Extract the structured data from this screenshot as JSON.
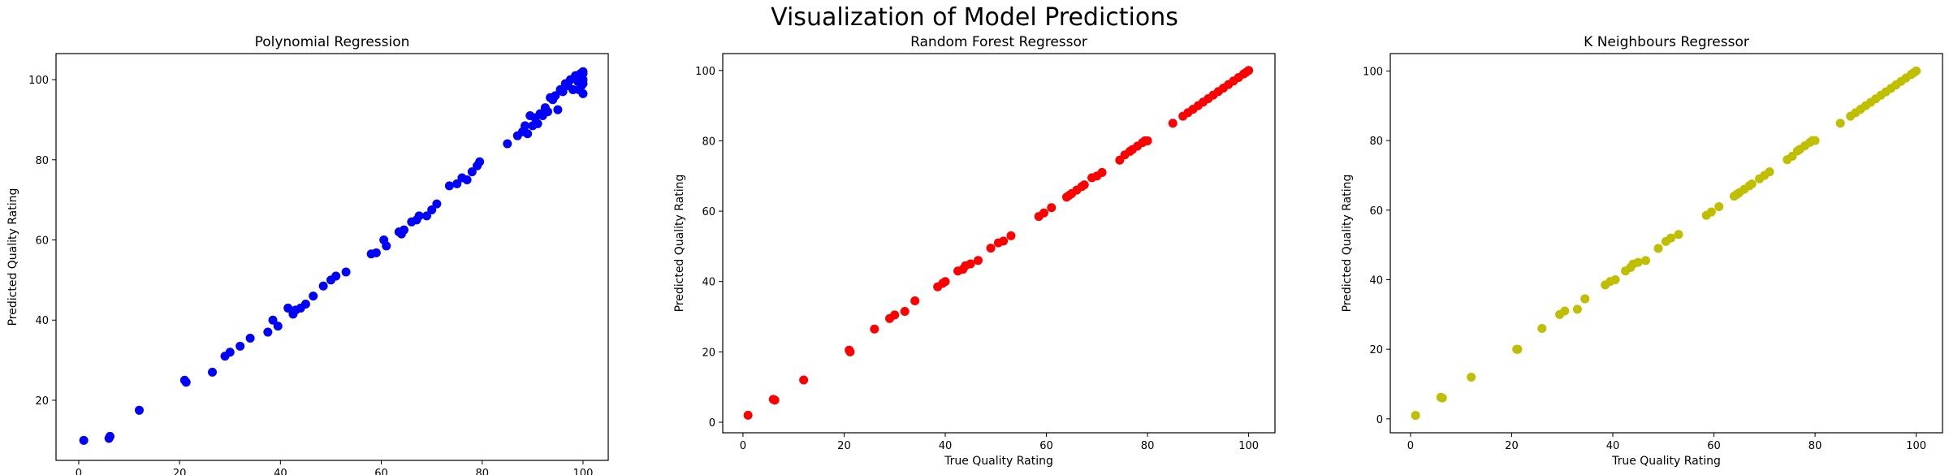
{
  "figure_title": "Visualization of Model Predictions",
  "chart_data": [
    {
      "type": "scatter",
      "title": "Polynomial Regression",
      "xlabel": "True Quality Rating",
      "ylabel": "Predicted Quality Rating",
      "color": "#0000ff",
      "xlim": [
        -4.5,
        105
      ],
      "ylim": [
        5,
        106.5
      ],
      "xticks": [
        0,
        20,
        40,
        60,
        80,
        100
      ],
      "yticks": [
        20,
        40,
        60,
        80,
        100
      ],
      "grid": false,
      "x": [
        1,
        6,
        6.2,
        12,
        21,
        21.3,
        26.5,
        29,
        30,
        32,
        34,
        37.5,
        38.5,
        39.5,
        41.5,
        42.5,
        43,
        44,
        45,
        46.5,
        48.5,
        50,
        51,
        53,
        58,
        59,
        60.5,
        61,
        63.5,
        64,
        64.5,
        66,
        67,
        67.5,
        69,
        70,
        71,
        73.5,
        75,
        76,
        77,
        78,
        79,
        79.5,
        85,
        87,
        88,
        88.5,
        89,
        89.5,
        90,
        90.5,
        91,
        91.5,
        92,
        92.5,
        93,
        93.5,
        94,
        94.5,
        95,
        95.5,
        96,
        96.5,
        97,
        97.5,
        98,
        98.5,
        99,
        99.2,
        99.5,
        99.7,
        100,
        100,
        100,
        100,
        100
      ],
      "y": [
        10,
        10.5,
        11,
        17.5,
        25,
        24.5,
        27,
        31,
        32,
        33.5,
        35.5,
        37,
        40,
        38.5,
        43,
        41.5,
        42.5,
        43,
        44,
        46,
        48.5,
        50,
        51,
        52,
        56.5,
        56.8,
        60,
        58.5,
        62,
        61.5,
        62.5,
        64.5,
        65,
        66,
        66,
        67.5,
        69,
        73.5,
        74,
        75.5,
        75,
        77,
        78.5,
        79.5,
        84,
        86,
        87,
        88.5,
        86.5,
        91,
        88.5,
        90.5,
        89,
        91.5,
        91,
        93,
        92,
        95.5,
        95,
        96,
        92.5,
        97.5,
        97,
        99,
        98.5,
        100,
        97.5,
        101,
        99.5,
        97.5,
        101.5,
        98.5,
        100,
        102,
        99,
        96.5,
        101.5
      ]
    },
    {
      "type": "scatter",
      "title": "Random Forest Regressor",
      "xlabel": "True Quality Rating",
      "ylabel": "Predicted Quality Rating",
      "color": "#ff0000",
      "xlim": [
        -4,
        105.2
      ],
      "ylim": [
        -3,
        104.8
      ],
      "xticks": [
        0,
        20,
        40,
        60,
        80,
        100
      ],
      "yticks": [
        0,
        20,
        40,
        60,
        80,
        100
      ],
      "grid": false,
      "x": [
        1,
        6,
        6.3,
        12,
        21,
        21.2,
        26,
        29,
        30,
        32,
        34,
        38.5,
        39.5,
        40,
        42.5,
        43.5,
        44,
        45,
        46.5,
        49,
        50.5,
        51.5,
        53,
        58.5,
        59.5,
        61,
        64,
        64.5,
        65,
        66,
        67,
        67.5,
        69,
        70,
        71,
        74.5,
        75.5,
        76.5,
        77,
        78,
        79,
        79.5,
        80,
        85,
        87,
        88,
        89,
        90,
        91,
        92,
        93,
        94,
        95,
        96,
        97,
        98,
        99,
        99.5,
        100
      ],
      "y": [
        2,
        6.5,
        6.3,
        12,
        20.5,
        20,
        26.5,
        29.5,
        30.5,
        31.5,
        34.5,
        38.5,
        39.5,
        40,
        43,
        43.5,
        44.5,
        45,
        46,
        49.5,
        51,
        51.5,
        53,
        58.5,
        59.5,
        61,
        64,
        64.5,
        65,
        66,
        67,
        67.5,
        69.5,
        70,
        71,
        74.5,
        76,
        77,
        77.5,
        78.5,
        79.5,
        80,
        80,
        85,
        87,
        88,
        89,
        90,
        91,
        92,
        93,
        94,
        95,
        96,
        97,
        98,
        99,
        99.5,
        100
      ]
    },
    {
      "type": "scatter",
      "title": "K Neighbours Regressor",
      "xlabel": "True Quality Rating",
      "ylabel": "Predicted Quality Rating",
      "color": "#bfbf00",
      "xlim": [
        -4,
        105.2
      ],
      "ylim": [
        -4,
        105
      ],
      "xticks": [
        0,
        20,
        40,
        60,
        80,
        100
      ],
      "yticks": [
        0,
        20,
        40,
        60,
        80,
        100
      ],
      "grid": false,
      "x": [
        1,
        6,
        6.3,
        12,
        21,
        21.2,
        26,
        29.5,
        30.5,
        33,
        34.5,
        38.5,
        39.5,
        40.5,
        42.5,
        43.5,
        44,
        45,
        46.5,
        49,
        50.5,
        51.5,
        53,
        58.5,
        59.5,
        61,
        64,
        64.5,
        65,
        66,
        67,
        67.5,
        69,
        70,
        71,
        74.5,
        75.5,
        76.5,
        77,
        78,
        79,
        79.5,
        80,
        85,
        87,
        88,
        89,
        90,
        91,
        92,
        93,
        94,
        95,
        96,
        97,
        98,
        99,
        99.5,
        100
      ],
      "y": [
        1,
        6.2,
        6,
        12,
        20,
        20,
        26,
        30,
        31,
        31.5,
        34.5,
        38.5,
        39.5,
        40,
        42.5,
        43.5,
        44.5,
        45,
        45.5,
        49,
        51,
        52,
        53,
        58.5,
        59.5,
        61,
        64,
        64.5,
        65,
        66,
        67,
        67.5,
        69,
        70,
        71,
        74.5,
        75.5,
        77,
        77.5,
        78.5,
        79.5,
        80,
        80,
        85,
        87,
        88,
        89,
        90,
        91,
        92,
        93,
        94,
        95,
        96,
        97,
        98,
        99,
        99.5,
        100
      ]
    }
  ]
}
